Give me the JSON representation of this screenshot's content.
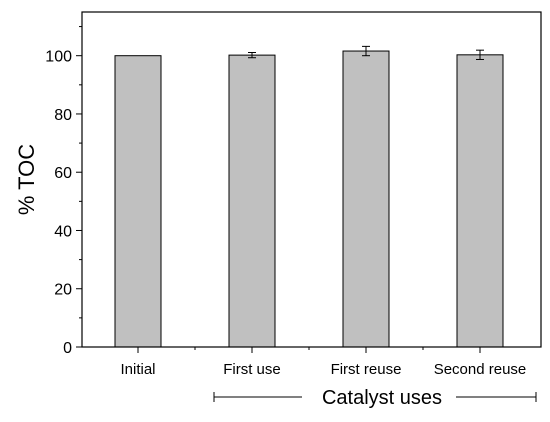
{
  "chart_data": {
    "type": "bar",
    "categories": [
      "Initial",
      "First use",
      "First reuse",
      "Second reuse"
    ],
    "values": [
      100,
      100.2,
      101.6,
      100.3
    ],
    "errors": [
      0,
      0.9,
      1.6,
      1.6
    ],
    "title": "",
    "xlabel": "",
    "ylabel": "% TOC",
    "ylim": [
      0,
      115
    ],
    "yticks": [
      0,
      20,
      40,
      60,
      80,
      100
    ],
    "grid": false,
    "legend": "none",
    "bar_color": "#c0c0c0",
    "bar_edge_color": "#000000",
    "group_label": {
      "text": "Catalyst uses",
      "spans_categories": [
        "First use",
        "First reuse",
        "Second reuse"
      ]
    }
  }
}
